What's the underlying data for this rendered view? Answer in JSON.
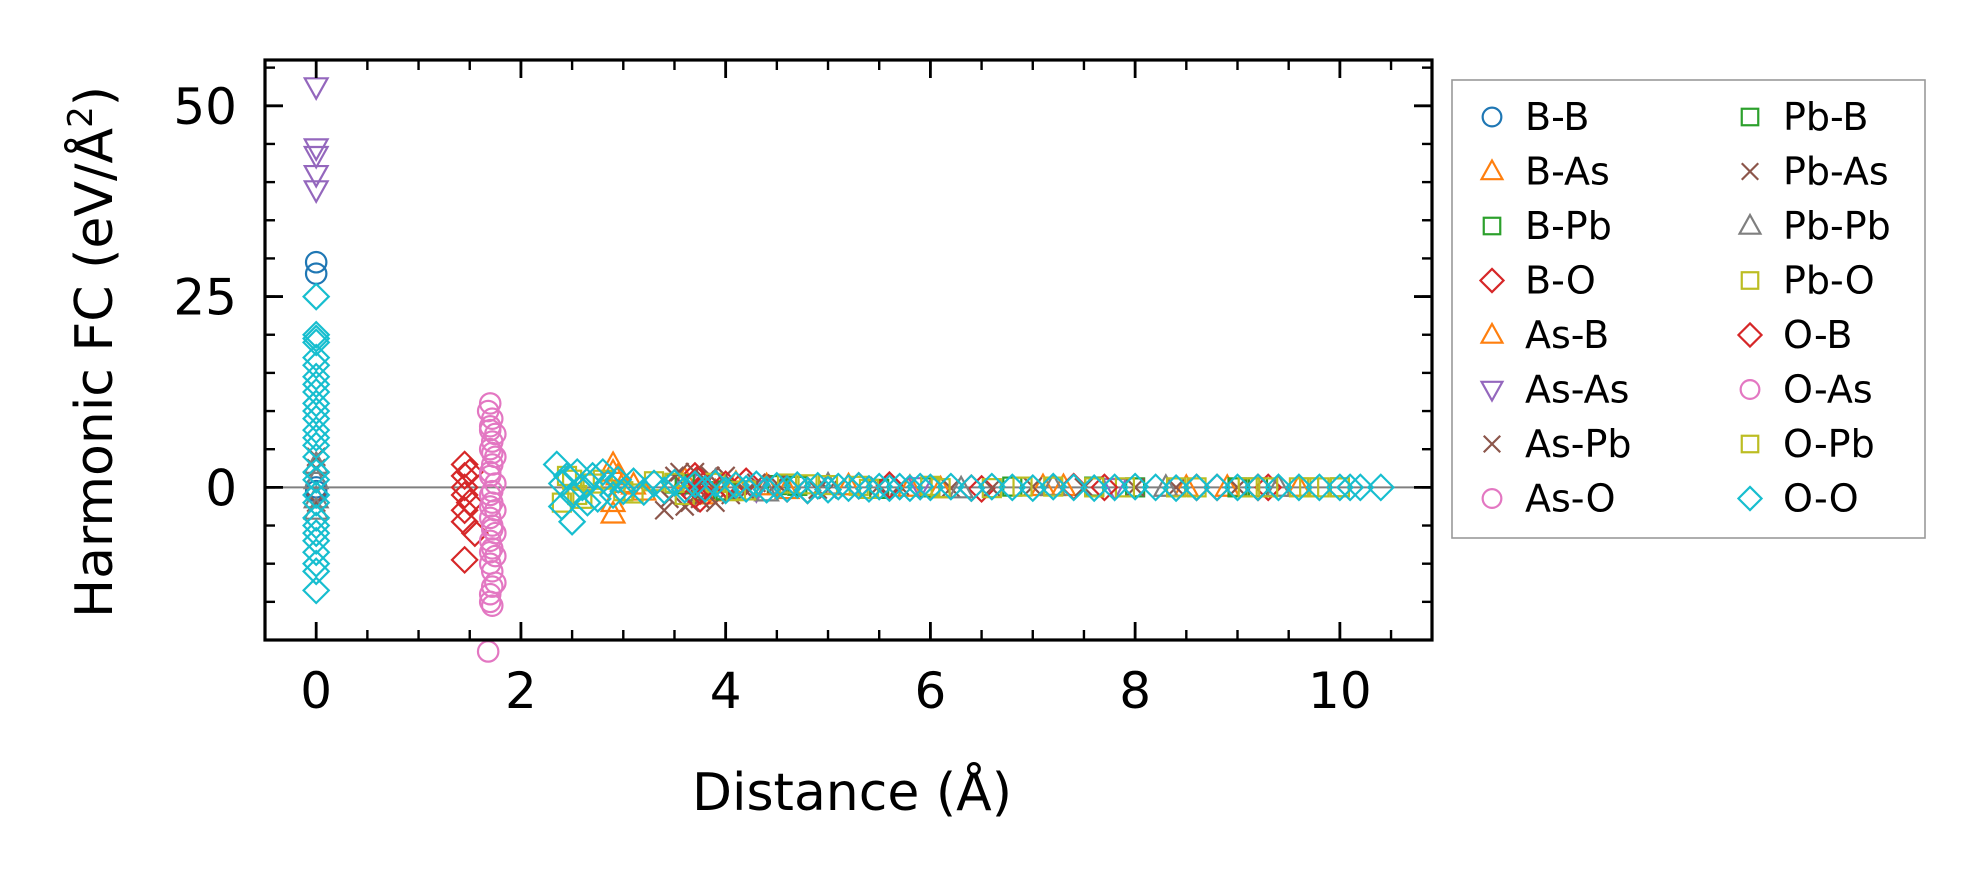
{
  "chart_data": {
    "type": "scatter",
    "xlabel": "Distance (Å)",
    "ylabel_parts": [
      "Harmonic FC (eV/Å",
      "2",
      ")"
    ],
    "xlim": [
      -0.5,
      10.9
    ],
    "ylim": [
      -20,
      56
    ],
    "xticks": [
      0,
      2,
      4,
      6,
      8,
      10
    ],
    "yticks": [
      0,
      25,
      50
    ],
    "xminor_step": 0.5,
    "yminor_step": 5,
    "zero_line": true,
    "grid": false,
    "legend_position": "outside-right",
    "legend_columns": 2,
    "series": [
      {
        "name": "B-B",
        "marker": "circle",
        "color": "#1f77b4",
        "points": [
          [
            0,
            29.5
          ],
          [
            0,
            28
          ],
          [
            0,
            0
          ],
          [
            0,
            -0.5
          ]
        ]
      },
      {
        "name": "B-As",
        "marker": "triangle-up",
        "color": "#ff7f0e",
        "points": [
          [
            2.9,
            3
          ],
          [
            2.9,
            -3.5
          ],
          [
            2.95,
            1.5
          ],
          [
            3.0,
            0.5
          ],
          [
            3.2,
            -0.5
          ],
          [
            3.6,
            1
          ],
          [
            3.8,
            -1
          ],
          [
            4.1,
            0.5
          ],
          [
            4.6,
            -0.3
          ],
          [
            5.2,
            0.2
          ],
          [
            6.1,
            -0.2
          ],
          [
            7.3,
            0.1
          ],
          [
            8.5,
            0
          ],
          [
            9.6,
            0
          ]
        ]
      },
      {
        "name": "B-Pb",
        "marker": "square",
        "color": "#2ca02c",
        "points": [
          [
            3.5,
            0.5
          ],
          [
            3.8,
            -0.5
          ],
          [
            4.5,
            0.3
          ],
          [
            5.5,
            -0.2
          ],
          [
            6.8,
            0.1
          ],
          [
            8.0,
            0
          ],
          [
            9.2,
            0
          ],
          [
            10.0,
            0
          ]
        ]
      },
      {
        "name": "B-O",
        "marker": "diamond",
        "color": "#d62728",
        "points": [
          [
            1.45,
            3
          ],
          [
            1.45,
            1.5
          ],
          [
            1.45,
            0
          ],
          [
            1.45,
            -1
          ],
          [
            1.45,
            -3
          ],
          [
            1.45,
            -4.5
          ],
          [
            1.45,
            -9.5
          ],
          [
            1.5,
            2
          ],
          [
            1.5,
            -2
          ],
          [
            1.55,
            -6
          ],
          [
            3.7,
            1.5
          ],
          [
            3.75,
            -1.5
          ],
          [
            3.8,
            0.5
          ],
          [
            4.2,
            0.8
          ],
          [
            4.8,
            -0.4
          ],
          [
            5.6,
            0.3
          ],
          [
            6.5,
            -0.2
          ],
          [
            7.4,
            0.1
          ],
          [
            8.6,
            0
          ],
          [
            9.2,
            0
          ],
          [
            9.3,
            0
          ]
        ]
      },
      {
        "name": "As-B",
        "marker": "triangle-up",
        "color": "#ff7f0e",
        "points": [
          [
            2.9,
            2
          ],
          [
            2.9,
            -2
          ],
          [
            3.1,
            0.3
          ],
          [
            3.9,
            -0.6
          ],
          [
            4.4,
            0.2
          ],
          [
            5.8,
            0
          ],
          [
            7.1,
            0.1
          ],
          [
            8.9,
            0
          ]
        ]
      },
      {
        "name": "As-As",
        "marker": "triangle-down",
        "color": "#9467bd",
        "points": [
          [
            0,
            52.5
          ],
          [
            0,
            44.5
          ],
          [
            0,
            43.5
          ],
          [
            0,
            41
          ],
          [
            0,
            39
          ],
          [
            3.6,
            0.5
          ],
          [
            4.3,
            -0.3
          ],
          [
            5.9,
            0.1
          ],
          [
            7.8,
            0
          ]
        ]
      },
      {
        "name": "As-Pb",
        "marker": "x",
        "color": "#8c564b",
        "points": [
          [
            0,
            4
          ],
          [
            0,
            2.5
          ],
          [
            0,
            -2
          ],
          [
            3.4,
            -3
          ],
          [
            3.5,
            1.5
          ],
          [
            3.6,
            -2.5
          ],
          [
            3.7,
            2
          ],
          [
            3.75,
            -1.5
          ],
          [
            3.8,
            1
          ],
          [
            3.9,
            -2
          ],
          [
            4.0,
            1.5
          ],
          [
            4.2,
            -0.5
          ],
          [
            4.5,
            0.5
          ],
          [
            5.0,
            -0.3
          ],
          [
            5.5,
            0.2
          ],
          [
            6.2,
            -0.1
          ],
          [
            7.0,
            0.1
          ],
          [
            8.0,
            0
          ],
          [
            9.0,
            0
          ]
        ]
      },
      {
        "name": "As-O",
        "marker": "circle",
        "color": "#e377c2",
        "points": [
          [
            1.7,
            11
          ],
          [
            1.72,
            9
          ],
          [
            1.7,
            7.5
          ],
          [
            1.75,
            7
          ],
          [
            1.72,
            6
          ],
          [
            1.7,
            5
          ],
          [
            1.75,
            4
          ],
          [
            1.72,
            3
          ],
          [
            1.7,
            1.5
          ],
          [
            1.75,
            0.5
          ],
          [
            1.7,
            -1
          ],
          [
            1.72,
            -2
          ],
          [
            1.75,
            -3
          ],
          [
            1.7,
            -4
          ],
          [
            1.72,
            -5
          ],
          [
            1.75,
            -6
          ],
          [
            1.7,
            -7
          ],
          [
            1.72,
            -8
          ],
          [
            1.75,
            -9
          ],
          [
            1.7,
            -10
          ],
          [
            1.72,
            -11
          ],
          [
            1.75,
            -12.5
          ],
          [
            1.7,
            -14
          ],
          [
            1.72,
            -15.5
          ],
          [
            1.68,
            -21.5
          ]
        ]
      },
      {
        "name": "Pb-B",
        "marker": "square",
        "color": "#2ca02c",
        "points": [
          [
            3.6,
            0.4
          ],
          [
            4.0,
            -0.4
          ],
          [
            4.7,
            0.2
          ],
          [
            6.0,
            0
          ],
          [
            7.6,
            0.1
          ],
          [
            9.0,
            0
          ]
        ]
      },
      {
        "name": "Pb-As",
        "marker": "x",
        "color": "#8c564b",
        "points": [
          [
            3.45,
            -1.5
          ],
          [
            3.55,
            2
          ],
          [
            3.65,
            -2
          ],
          [
            3.85,
            1.5
          ],
          [
            4.05,
            -1
          ],
          [
            4.3,
            0.6
          ],
          [
            4.9,
            -0.3
          ],
          [
            5.7,
            0.2
          ],
          [
            6.6,
            -0.1
          ],
          [
            7.5,
            0
          ],
          [
            8.4,
            0
          ]
        ]
      },
      {
        "name": "Pb-Pb",
        "marker": "triangle-up",
        "color": "#7f7f7f",
        "points": [
          [
            0,
            3
          ],
          [
            0,
            1
          ],
          [
            0,
            -1.5
          ],
          [
            0,
            -3
          ],
          [
            3.9,
            0.8
          ],
          [
            4.4,
            -0.6
          ],
          [
            5.0,
            0.3
          ],
          [
            6.3,
            -0.2
          ],
          [
            7.2,
            0.1
          ],
          [
            8.3,
            0
          ],
          [
            9.4,
            0
          ]
        ]
      },
      {
        "name": "Pb-O",
        "marker": "square",
        "color": "#bcbd22",
        "points": [
          [
            2.4,
            -2
          ],
          [
            2.5,
            1
          ],
          [
            2.6,
            -1.5
          ],
          [
            2.7,
            0.5
          ],
          [
            3.0,
            -0.5
          ],
          [
            3.3,
            0.8
          ],
          [
            3.6,
            -1
          ],
          [
            3.9,
            0.6
          ],
          [
            4.2,
            -0.4
          ],
          [
            4.6,
            0.5
          ],
          [
            5.0,
            0.3
          ],
          [
            5.4,
            -0.2
          ],
          [
            6.0,
            0.2
          ],
          [
            6.6,
            -0.1
          ],
          [
            7.2,
            0.1
          ],
          [
            7.9,
            0
          ],
          [
            8.6,
            0
          ],
          [
            9.3,
            0
          ],
          [
            9.6,
            0
          ],
          [
            9.8,
            0
          ],
          [
            10.0,
            0
          ]
        ]
      },
      {
        "name": "O-B",
        "marker": "diamond",
        "color": "#d62728",
        "points": [
          [
            3.7,
            -1
          ],
          [
            3.72,
            1
          ],
          [
            3.75,
            -0.5
          ],
          [
            4.0,
            0.4
          ],
          [
            4.6,
            -0.2
          ],
          [
            5.3,
            0.2
          ],
          [
            6.4,
            -0.1
          ],
          [
            7.7,
            0
          ],
          [
            8.8,
            0
          ],
          [
            9.2,
            0
          ]
        ]
      },
      {
        "name": "O-As",
        "marker": "circle",
        "color": "#e377c2",
        "points": [
          [
            1.68,
            10
          ],
          [
            1.7,
            8
          ],
          [
            1.72,
            4.5
          ],
          [
            1.7,
            2
          ],
          [
            1.72,
            -0.5
          ],
          [
            1.7,
            -2.5
          ],
          [
            1.72,
            -5.5
          ],
          [
            1.7,
            -8.5
          ],
          [
            1.72,
            -13
          ],
          [
            1.7,
            -15
          ]
        ]
      },
      {
        "name": "O-Pb",
        "marker": "square",
        "color": "#bcbd22",
        "points": [
          [
            2.45,
            1.5
          ],
          [
            2.55,
            -1
          ],
          [
            2.8,
            1
          ],
          [
            3.1,
            -0.8
          ],
          [
            3.5,
            0.6
          ],
          [
            4.1,
            -0.5
          ],
          [
            4.8,
            0.4
          ],
          [
            5.3,
            0.2
          ],
          [
            6.1,
            -0.1
          ],
          [
            6.9,
            0.1
          ],
          [
            7.6,
            0
          ],
          [
            8.4,
            0
          ],
          [
            9.1,
            0
          ],
          [
            9.7,
            0
          ]
        ]
      },
      {
        "name": "O-O",
        "marker": "diamond",
        "color": "#17becf",
        "points": [
          [
            0,
            25
          ],
          [
            0,
            20
          ],
          [
            0,
            19.5
          ],
          [
            0,
            19
          ],
          [
            0,
            17
          ],
          [
            0,
            16
          ],
          [
            0,
            14.5
          ],
          [
            0,
            13.5
          ],
          [
            0,
            12.5
          ],
          [
            0,
            11
          ],
          [
            0,
            10
          ],
          [
            0,
            9
          ],
          [
            0,
            7.5
          ],
          [
            0,
            6.5
          ],
          [
            0,
            5.5
          ],
          [
            0,
            4
          ],
          [
            0,
            2
          ],
          [
            0,
            1
          ],
          [
            0,
            -1
          ],
          [
            0,
            -2
          ],
          [
            0,
            -4
          ],
          [
            0,
            -5
          ],
          [
            0,
            -6
          ],
          [
            0,
            -7
          ],
          [
            0,
            -8.5
          ],
          [
            0,
            -10
          ],
          [
            0,
            -11
          ],
          [
            0,
            -13.5
          ],
          [
            2.35,
            3
          ],
          [
            2.4,
            0.5
          ],
          [
            2.4,
            -2.5
          ],
          [
            2.45,
            1.5
          ],
          [
            2.5,
            -4.5
          ],
          [
            2.5,
            -1
          ],
          [
            2.55,
            2
          ],
          [
            2.6,
            0
          ],
          [
            2.65,
            -2
          ],
          [
            2.7,
            1.5
          ],
          [
            2.75,
            -1.5
          ],
          [
            2.8,
            2
          ],
          [
            2.85,
            0.5
          ],
          [
            2.9,
            -1
          ],
          [
            2.95,
            1
          ],
          [
            3.0,
            -0.5
          ],
          [
            3.1,
            0.8
          ],
          [
            3.2,
            -0.6
          ],
          [
            3.3,
            0.5
          ],
          [
            3.4,
            -0.4
          ],
          [
            3.5,
            0.6
          ],
          [
            3.6,
            -0.3
          ],
          [
            3.7,
            0.4
          ],
          [
            3.8,
            -0.2
          ],
          [
            3.9,
            0.5
          ],
          [
            4.0,
            -0.4
          ],
          [
            4.1,
            0.3
          ],
          [
            4.2,
            -0.2
          ],
          [
            4.3,
            0.4
          ],
          [
            4.4,
            -0.3
          ],
          [
            4.5,
            0.2
          ],
          [
            4.6,
            -0.2
          ],
          [
            4.7,
            0.3
          ],
          [
            4.8,
            -0.4
          ],
          [
            4.9,
            0.2
          ],
          [
            5.0,
            -0.3
          ],
          [
            5.1,
            0.1
          ],
          [
            5.2,
            -0.1
          ],
          [
            5.3,
            0.2
          ],
          [
            5.4,
            -0.2
          ],
          [
            5.5,
            0.1
          ],
          [
            5.6,
            -0.1
          ],
          [
            5.7,
            0.1
          ],
          [
            5.8,
            -0.1
          ],
          [
            5.9,
            0.1
          ],
          [
            6.0,
            0
          ],
          [
            6.2,
            0.1
          ],
          [
            6.4,
            -0.1
          ],
          [
            6.6,
            0.1
          ],
          [
            6.8,
            0
          ],
          [
            7.0,
            -0.1
          ],
          [
            7.2,
            0.1
          ],
          [
            7.4,
            0
          ],
          [
            7.6,
            -0.1
          ],
          [
            7.8,
            0
          ],
          [
            8.0,
            0.1
          ],
          [
            8.2,
            0
          ],
          [
            8.4,
            -0.1
          ],
          [
            8.6,
            0
          ],
          [
            8.8,
            0
          ],
          [
            9.0,
            0
          ],
          [
            9.2,
            0
          ],
          [
            9.4,
            0
          ],
          [
            9.6,
            0
          ],
          [
            9.8,
            0
          ],
          [
            10.0,
            0
          ],
          [
            10.1,
            0
          ],
          [
            10.2,
            0
          ],
          [
            10.4,
            0
          ]
        ]
      }
    ]
  }
}
